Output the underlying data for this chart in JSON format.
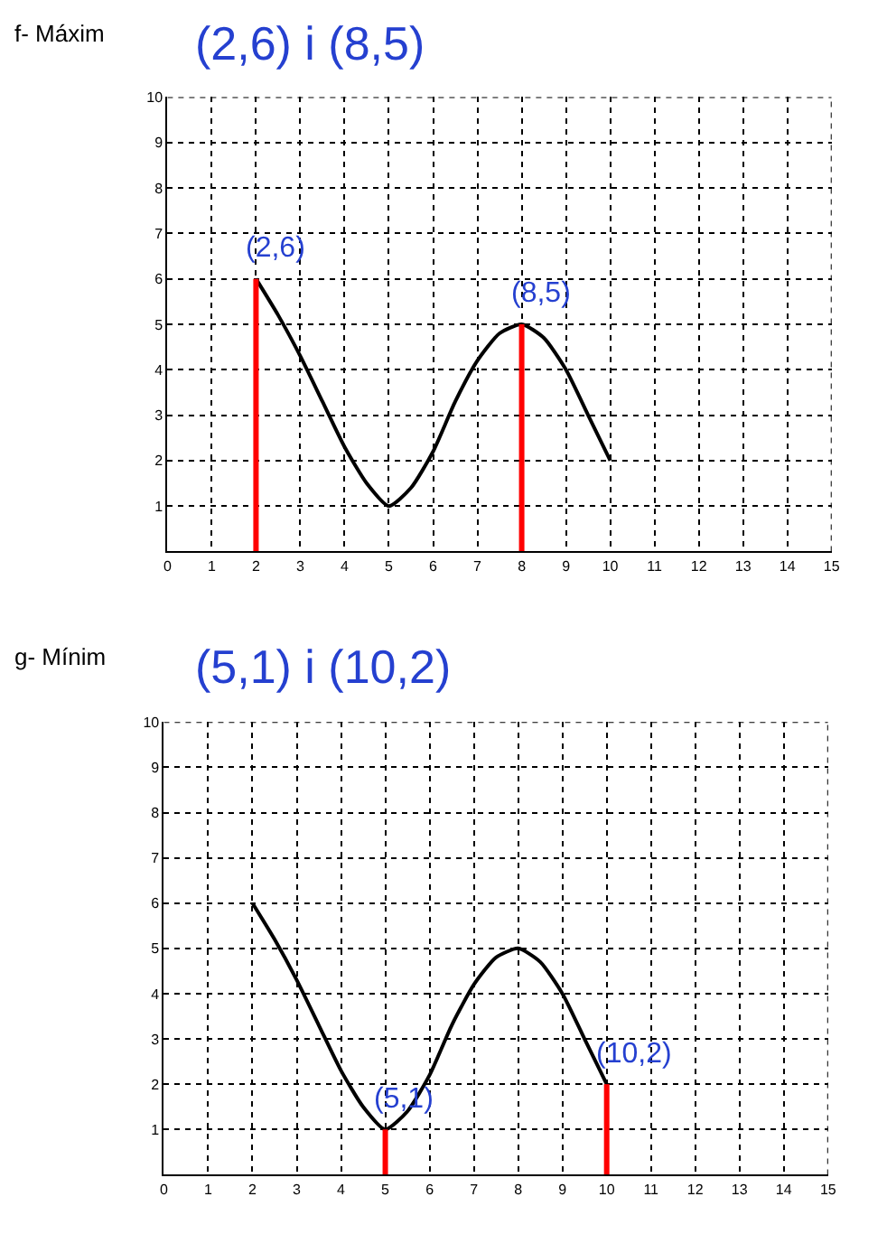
{
  "chart_data": [
    {
      "type": "line",
      "title": "f- Máxim",
      "subtitle": "(2,6) i (8,5)",
      "xlim": [
        0,
        15
      ],
      "ylim": [
        0,
        10
      ],
      "xticks": [
        0,
        1,
        2,
        3,
        4,
        5,
        6,
        7,
        8,
        9,
        10,
        11,
        12,
        13,
        14,
        15
      ],
      "yticks": [
        1,
        2,
        3,
        4,
        5,
        6,
        7,
        8,
        9,
        10
      ],
      "grid": true,
      "marker": "none",
      "line_style": "solid",
      "series": [
        {
          "x": [
            2,
            2.5,
            3,
            3.5,
            4,
            4.5,
            5,
            5.5,
            6,
            6.5,
            7,
            7.5,
            8,
            8.5,
            9,
            9.5,
            10
          ],
          "values": [
            6,
            5.2,
            4.3,
            3.3,
            2.3,
            1.5,
            1,
            1.4,
            2.2,
            3.3,
            4.2,
            4.8,
            5,
            4.7,
            4,
            3,
            2
          ],
          "color": "#000000"
        },
        {
          "x": [
            2,
            2
          ],
          "values": [
            0,
            6
          ],
          "color": "#ff0000"
        },
        {
          "x": [
            8,
            8
          ],
          "values": [
            0,
            5
          ],
          "color": "#ff0000"
        }
      ],
      "annotations": [
        {
          "text": "(2,6)",
          "x": 2,
          "y": 6
        },
        {
          "text": "(8,5)",
          "x": 8,
          "y": 5
        }
      ]
    },
    {
      "type": "line",
      "title": "g- Mínim",
      "subtitle": "(5,1) i (10,2)",
      "xlim": [
        0,
        15
      ],
      "ylim": [
        0,
        10
      ],
      "xticks": [
        0,
        1,
        2,
        3,
        4,
        5,
        6,
        7,
        8,
        9,
        10,
        11,
        12,
        13,
        14,
        15
      ],
      "yticks": [
        1,
        2,
        3,
        4,
        5,
        6,
        7,
        8,
        9,
        10
      ],
      "grid": true,
      "marker": "none",
      "line_style": "solid",
      "series": [
        {
          "x": [
            2,
            2.5,
            3,
            3.5,
            4,
            4.5,
            5,
            5.5,
            6,
            6.5,
            7,
            7.5,
            8,
            8.5,
            9,
            9.5,
            10
          ],
          "values": [
            6,
            5.2,
            4.3,
            3.3,
            2.3,
            1.5,
            1,
            1.4,
            2.2,
            3.3,
            4.2,
            4.8,
            5,
            4.7,
            4,
            3,
            2
          ],
          "color": "#000000"
        },
        {
          "x": [
            5,
            5
          ],
          "values": [
            0,
            1
          ],
          "color": "#ff0000"
        },
        {
          "x": [
            10,
            10
          ],
          "values": [
            0,
            2
          ],
          "color": "#ff0000"
        }
      ],
      "annotations": [
        {
          "text": "(5,1)",
          "x": 5,
          "y": 1
        },
        {
          "text": "(10,2)",
          "x": 10,
          "y": 2
        }
      ]
    }
  ]
}
